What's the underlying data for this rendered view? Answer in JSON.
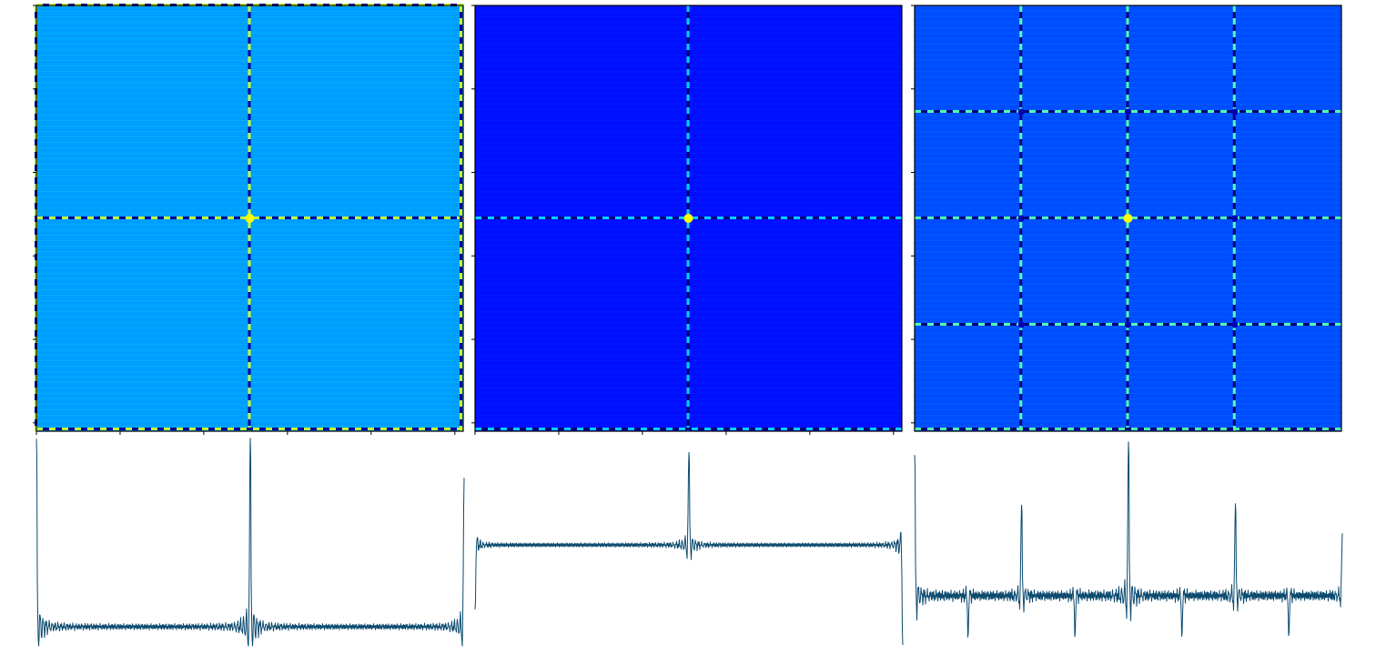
{
  "figure": {
    "colormap": "jet",
    "trace_color": "#0b4a6e",
    "frame_color": "#000000",
    "background": "#ffffff"
  },
  "chart_data": [
    {
      "type": "heatmap",
      "panel": "left-image",
      "pattern": "fourier-magnitude",
      "title": "",
      "xlabel": "",
      "ylabel": "",
      "base_level": 0.28,
      "contrast": 0.18,
      "lines": [
        {
          "orientation": "horizontal",
          "position": 0.5
        },
        {
          "orientation": "vertical",
          "position": 0.5
        },
        {
          "orientation": "horizontal",
          "position": 0.0
        },
        {
          "orientation": "horizontal",
          "position": 1.0
        },
        {
          "orientation": "vertical",
          "position": 0.0
        },
        {
          "orientation": "vertical",
          "position": 1.0
        }
      ],
      "peaks": [
        {
          "x": 0.5,
          "y": 0.5
        }
      ],
      "grid": false
    },
    {
      "type": "heatmap",
      "panel": "middle-image",
      "pattern": "fourier-magnitude",
      "title": "",
      "xlabel": "",
      "ylabel": "",
      "base_level": 0.14,
      "contrast": 0.12,
      "lines": [
        {
          "orientation": "horizontal",
          "position": 0.5
        },
        {
          "orientation": "vertical",
          "position": 0.5
        },
        {
          "orientation": "horizontal",
          "position": 1.0
        }
      ],
      "peaks": [
        {
          "x": 0.5,
          "y": 0.5
        }
      ],
      "grid": false
    },
    {
      "type": "heatmap",
      "panel": "right-image",
      "pattern": "fourier-magnitude",
      "title": "",
      "xlabel": "",
      "ylabel": "",
      "base_level": 0.2,
      "contrast": 0.16,
      "lines": [
        {
          "orientation": "horizontal",
          "position": 0.5
        },
        {
          "orientation": "vertical",
          "position": 0.5
        },
        {
          "orientation": "horizontal",
          "position": 0.25
        },
        {
          "orientation": "horizontal",
          "position": 0.75
        },
        {
          "orientation": "vertical",
          "position": 0.25
        },
        {
          "orientation": "vertical",
          "position": 0.75
        },
        {
          "orientation": "horizontal",
          "position": 1.0
        }
      ],
      "peaks": [
        {
          "x": 0.5,
          "y": 0.5
        },
        {
          "x": 0.25,
          "y": 0.25
        },
        {
          "x": 0.75,
          "y": 0.25
        },
        {
          "x": 0.25,
          "y": 0.75
        },
        {
          "x": 0.75,
          "y": 0.75
        },
        {
          "x": 0.5,
          "y": 0.25
        },
        {
          "x": 0.5,
          "y": 0.75
        },
        {
          "x": 0.25,
          "y": 0.5
        },
        {
          "x": 0.75,
          "y": 0.5
        }
      ],
      "grid": false
    },
    {
      "type": "line",
      "panel": "left-profile",
      "title": "",
      "xlabel": "",
      "ylabel": "",
      "xlim": [
        0,
        1
      ],
      "ylim": [
        -0.1,
        1.0
      ],
      "baseline": 0.0,
      "ripple": 0.012,
      "spikes": [
        {
          "x": 0.0,
          "height": 0.98
        },
        {
          "x": 0.5,
          "height": 0.98
        },
        {
          "x": 1.0,
          "height": 0.77
        }
      ],
      "grid": false
    },
    {
      "type": "line",
      "panel": "middle-profile",
      "title": "",
      "xlabel": "",
      "ylabel": "",
      "xlim": [
        0,
        1
      ],
      "ylim": [
        -0.55,
        0.6
      ],
      "baseline": 0.0,
      "ripple": 0.01,
      "spikes": [
        {
          "x": 0.0,
          "height": -0.35
        },
        {
          "x": 0.5,
          "height": 0.5
        },
        {
          "x": 1.0,
          "height": -0.55
        }
      ],
      "grid": false
    },
    {
      "type": "line",
      "panel": "right-profile",
      "title": "",
      "xlabel": "",
      "ylabel": "",
      "xlim": [
        0,
        1
      ],
      "ylim": [
        -0.25,
        0.8
      ],
      "baseline": 0.0,
      "ripple": 0.02,
      "spikes": [
        {
          "x": 0.0,
          "height": 0.7
        },
        {
          "x": 0.125,
          "height": -0.2
        },
        {
          "x": 0.25,
          "height": 0.45
        },
        {
          "x": 0.375,
          "height": -0.2
        },
        {
          "x": 0.5,
          "height": 0.76
        },
        {
          "x": 0.625,
          "height": -0.2
        },
        {
          "x": 0.75,
          "height": 0.45
        },
        {
          "x": 0.875,
          "height": -0.2
        },
        {
          "x": 1.0,
          "height": 0.3
        }
      ],
      "grid": false
    }
  ]
}
